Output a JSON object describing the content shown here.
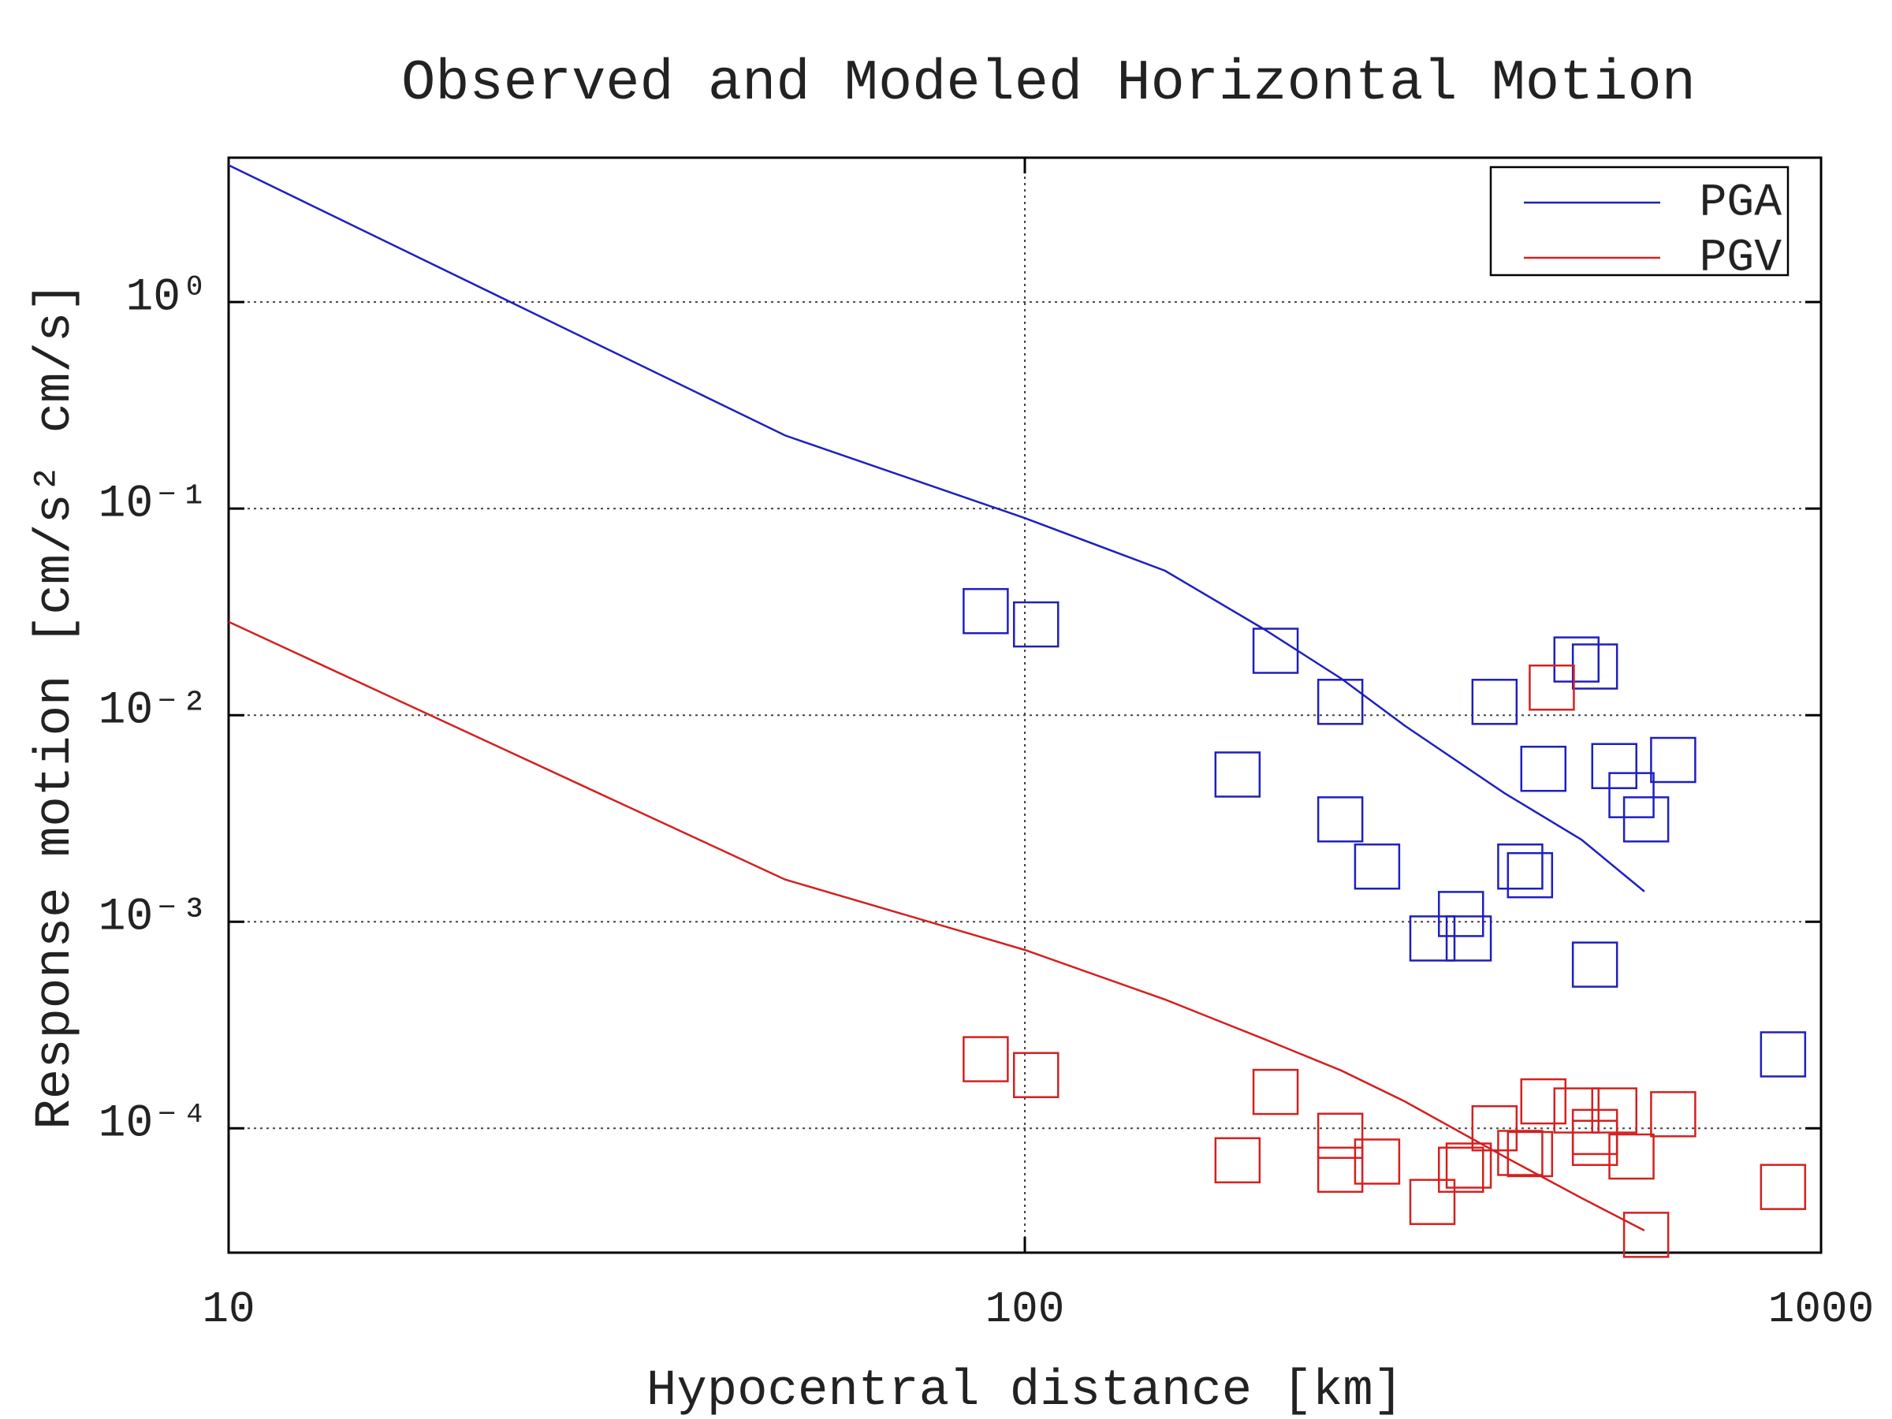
{
  "chart_data": {
    "type": "line",
    "title": "Observed and Modeled Horizontal Motion",
    "x_label": "Hypocentral distance [km]",
    "y_label": "Response motion [cm/s²  cm/s]",
    "xscale": "log",
    "yscale": "log",
    "xlim": [
      10,
      1000
    ],
    "ylim": [
      2.5e-05,
      5
    ],
    "xticks": [
      10,
      100,
      1000
    ],
    "yticks": [
      {
        "value": 0.0001,
        "label": "10⁻⁴"
      },
      {
        "value": 0.001,
        "label": "10⁻³"
      },
      {
        "value": 0.01,
        "label": "10⁻²"
      },
      {
        "value": 0.1,
        "label": "10⁻¹"
      },
      {
        "value": 1,
        "label": "10⁰"
      }
    ],
    "grid": true,
    "legend": "upper right",
    "series": [
      {
        "name": "PGA",
        "type": "line",
        "color": "#1f1fbf",
        "x": [
          10,
          50,
          100,
          150,
          200,
          250,
          300,
          400,
          500,
          600
        ],
        "values": [
          4.6,
          0.226,
          0.09,
          0.05,
          0.026,
          0.015,
          0.0089,
          0.0042,
          0.0025,
          0.0014
        ]
      },
      {
        "name": "PGV",
        "type": "line",
        "color": "#d42020",
        "x": [
          10,
          50,
          100,
          150,
          200,
          250,
          300,
          400,
          500,
          600
        ],
        "values": [
          0.0283,
          0.0016,
          0.00073,
          0.00042,
          0.00027,
          0.00019,
          0.000135,
          7.3e-05,
          4.6e-05,
          3.2e-05
        ]
      },
      {
        "type": "scatter",
        "color": "#1f1fbf",
        "x": [
          89.3,
          103.3,
          206.5,
          249,
          185,
          249,
          277,
          325,
          353,
          361,
          389,
          419,
          431,
          448,
          493,
          520,
          550,
          578,
          603,
          652,
          520,
          896
        ],
        "values": [
          0.0319,
          0.0275,
          0.0205,
          0.0116,
          0.00516,
          0.00313,
          0.00185,
          0.00083,
          0.00109,
          0.00083,
          0.0116,
          0.00185,
          0.00168,
          0.0055,
          0.0186,
          0.0172,
          0.00567,
          0.0041,
          0.00313,
          0.00607,
          0.00062,
          0.000228
        ]
      },
      {
        "type": "scatter",
        "color": "#d42020",
        "x": [
          89.3,
          103.3,
          206.5,
          185,
          249,
          249,
          277,
          325,
          353,
          361,
          389,
          419,
          431,
          448,
          459,
          493,
          520,
          520,
          550,
          578,
          603,
          652,
          896
        ],
        "values": [
          0.000216,
          0.000181,
          0.00015,
          7e-05,
          9.2e-05,
          6.3e-05,
          6.9e-05,
          4.4e-05,
          6.3e-05,
          6.6e-05,
          0.0001,
          7.6e-05,
          7.5e-05,
          0.000135,
          0.0136,
          0.000122,
          9.6e-05,
          8.5e-05,
          0.000122,
          7.3e-05,
          3.05e-05,
          0.000117,
          5.2e-05
        ]
      }
    ]
  }
}
